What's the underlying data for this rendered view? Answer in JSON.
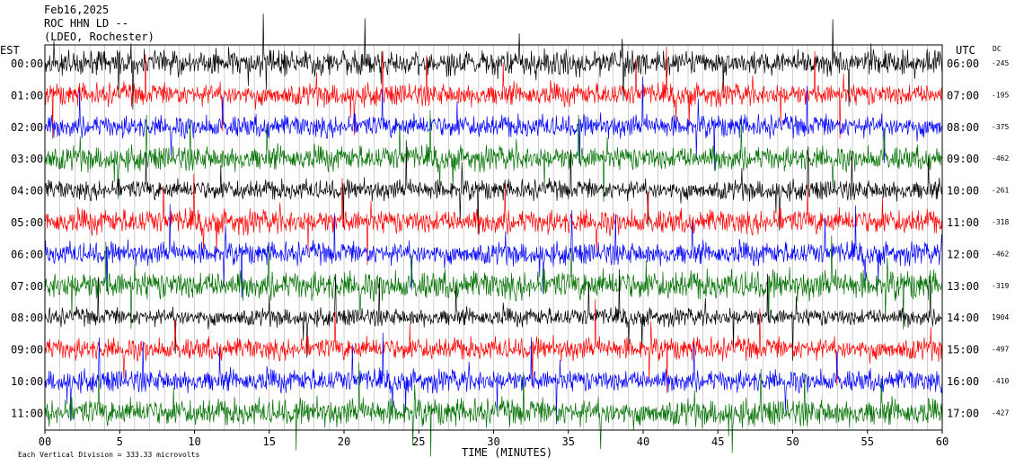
{
  "header": {
    "date": "Feb16,2025",
    "station": "ROC HHN LD --",
    "network": "(LDEO, Rochester)"
  },
  "chart_data": {
    "type": "line",
    "title": "",
    "xlabel": "TIME (MINUTES)",
    "left_axis_label": "EST",
    "right_axis_label": "UTC",
    "dc_label": "DC",
    "xlim": [
      0,
      60
    ],
    "x_ticks": [
      "00",
      "5",
      "10",
      "15",
      "20",
      "25",
      "30",
      "35",
      "40",
      "45",
      "50",
      "55",
      "60"
    ],
    "footnote": "Each Vertical Division =  333.33 microvolts",
    "grid": true,
    "legend": "none",
    "trace_colors": [
      "#000000",
      "#ff0000",
      "#0000ff",
      "#007000"
    ],
    "rows": [
      {
        "est": "00:00",
        "utc": "06:00",
        "dc": "-245",
        "color": "#000000",
        "amp": 0.55
      },
      {
        "est": "01:00",
        "utc": "07:00",
        "dc": "-195",
        "color": "#ff0000",
        "amp": 0.5
      },
      {
        "est": "02:00",
        "utc": "08:00",
        "dc": "-375",
        "color": "#0000ff",
        "amp": 0.5
      },
      {
        "est": "03:00",
        "utc": "09:00",
        "dc": "-462",
        "color": "#007000",
        "amp": 0.55
      },
      {
        "est": "04:00",
        "utc": "10:00",
        "dc": "-261",
        "color": "#000000",
        "amp": 0.45
      },
      {
        "est": "05:00",
        "utc": "11:00",
        "dc": "-318",
        "color": "#ff0000",
        "amp": 0.55
      },
      {
        "est": "06:00",
        "utc": "12:00",
        "dc": "-462",
        "color": "#0000ff",
        "amp": 0.5
      },
      {
        "est": "07:00",
        "utc": "13:00",
        "dc": "-319",
        "color": "#007000",
        "amp": 0.65
      },
      {
        "est": "08:00",
        "utc": "14:00",
        "dc": "1904",
        "color": "#000000",
        "amp": 0.4
      },
      {
        "est": "09:00",
        "utc": "15:00",
        "dc": "-497",
        "color": "#ff0000",
        "amp": 0.5
      },
      {
        "est": "10:00",
        "utc": "16:00",
        "dc": "-410",
        "color": "#0000ff",
        "amp": 0.5
      },
      {
        "est": "11:00",
        "utc": "17:00",
        "dc": "-427",
        "color": "#007000",
        "amp": 0.6
      }
    ]
  }
}
